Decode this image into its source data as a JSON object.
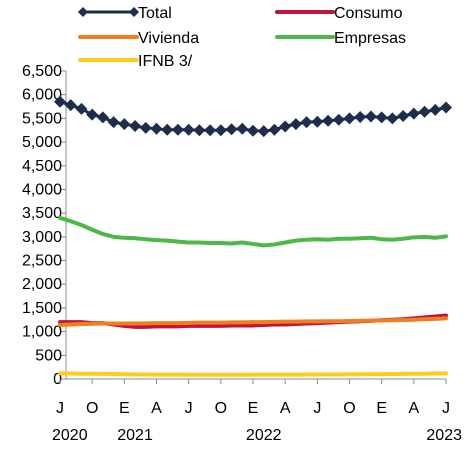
{
  "chart_data": {
    "type": "line",
    "title": "",
    "xlabel": "",
    "ylabel": "",
    "ylim": [
      0,
      6500
    ],
    "yticks": [
      0,
      500,
      1000,
      1500,
      2000,
      2500,
      3000,
      3500,
      4000,
      4500,
      5000,
      5500,
      6000,
      6500
    ],
    "ytick_labels": [
      "0",
      "500",
      "1,000",
      "1,500",
      "2,000",
      "2,500",
      "3,000",
      "3,500",
      "4,000",
      "4,500",
      "5,000",
      "5,500",
      "6,000",
      "6,500"
    ],
    "grid": false,
    "legend_position": "top",
    "x": [
      "2020-06",
      "2020-07",
      "2020-08",
      "2020-09",
      "2020-10",
      "2020-11",
      "2020-12",
      "2021-01",
      "2021-02",
      "2021-03",
      "2021-04",
      "2021-05",
      "2021-06",
      "2021-07",
      "2021-08",
      "2021-09",
      "2021-10",
      "2021-11",
      "2021-12",
      "2022-01",
      "2022-02",
      "2022-03",
      "2022-04",
      "2022-05",
      "2022-06",
      "2022-07",
      "2022-08",
      "2022-09",
      "2022-10",
      "2022-11",
      "2022-12",
      "2023-01",
      "2023-02",
      "2023-03",
      "2023-04",
      "2023-05",
      "2023-06"
    ],
    "x_month_labels": [
      "J",
      "O",
      "E",
      "A",
      "J",
      "O",
      "E",
      "A",
      "J",
      "O",
      "E",
      "A",
      "J"
    ],
    "x_year_labels": [
      "2020",
      "2021",
      "2022",
      "2023"
    ],
    "series": [
      {
        "name": "Total",
        "color": "#1f2d4d",
        "marker": "diamond",
        "values": [
          5850,
          5780,
          5700,
          5580,
          5520,
          5420,
          5380,
          5340,
          5300,
          5280,
          5260,
          5260,
          5260,
          5250,
          5250,
          5250,
          5270,
          5280,
          5240,
          5230,
          5260,
          5330,
          5380,
          5420,
          5430,
          5450,
          5470,
          5500,
          5530,
          5540,
          5520,
          5500,
          5550,
          5600,
          5640,
          5680,
          5730
        ]
      },
      {
        "name": "Consumo",
        "color": "#c0143c",
        "values": [
          1200,
          1200,
          1200,
          1180,
          1180,
          1150,
          1120,
          1100,
          1100,
          1110,
          1110,
          1110,
          1120,
          1120,
          1120,
          1120,
          1130,
          1130,
          1130,
          1140,
          1150,
          1150,
          1160,
          1170,
          1180,
          1190,
          1200,
          1210,
          1220,
          1230,
          1240,
          1250,
          1260,
          1280,
          1300,
          1320,
          1340
        ]
      },
      {
        "name": "Vivienda",
        "color": "#f07d1e",
        "values": [
          1140,
          1150,
          1160,
          1165,
          1170,
          1170,
          1170,
          1170,
          1175,
          1180,
          1180,
          1180,
          1185,
          1190,
          1190,
          1190,
          1195,
          1195,
          1200,
          1200,
          1205,
          1210,
          1210,
          1215,
          1215,
          1220,
          1220,
          1225,
          1230,
          1230,
          1235,
          1240,
          1245,
          1250,
          1260,
          1270,
          1280
        ]
      },
      {
        "name": "Empresas",
        "color": "#4cb847",
        "values": [
          3400,
          3330,
          3250,
          3150,
          3060,
          3000,
          2980,
          2970,
          2950,
          2930,
          2920,
          2900,
          2880,
          2880,
          2870,
          2870,
          2860,
          2880,
          2850,
          2820,
          2840,
          2880,
          2920,
          2940,
          2950,
          2940,
          2960,
          2960,
          2970,
          2980,
          2950,
          2940,
          2960,
          2990,
          3000,
          2980,
          3010
        ]
      },
      {
        "name": "IFNB 3/",
        "color": "#ffcc1a",
        "values": [
          120,
          115,
          112,
          110,
          108,
          105,
          100,
          98,
          95,
          93,
          92,
          92,
          91,
          90,
          90,
          90,
          90,
          90,
          90,
          92,
          92,
          92,
          93,
          95,
          96,
          97,
          98,
          100,
          100,
          102,
          104,
          106,
          108,
          110,
          112,
          115,
          118
        ]
      }
    ]
  }
}
